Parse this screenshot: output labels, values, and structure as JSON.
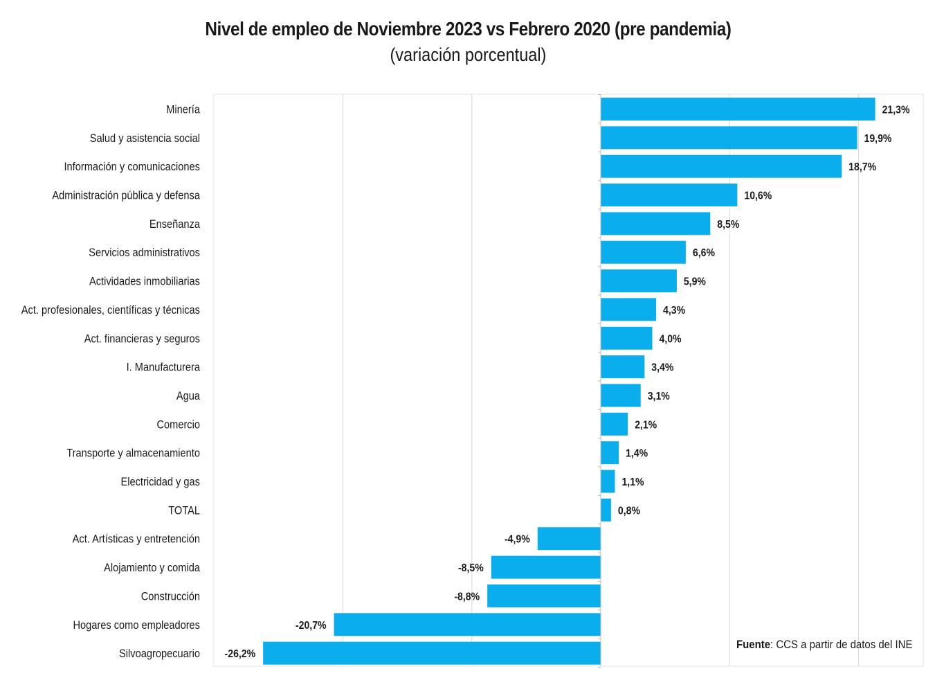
{
  "chart_data": {
    "type": "bar",
    "orientation": "horizontal",
    "title": "Nivel de empleo de Noviembre 2023 vs Febrero 2020 (pre pandemia)",
    "subtitle": "(variación porcentual)",
    "categories": [
      "Minería",
      "Salud y asistencia social",
      "Información y comunicaciones",
      "Administración pública y defensa",
      "Enseñanza",
      "Servicios administrativos",
      "Actividades inmobiliarias",
      "Act. profesionales, científicas y técnicas",
      "Act. financieras y seguros",
      "I. Manufacturera",
      "Agua",
      "Comercio",
      "Transporte y almacenamiento",
      "Electricidad y gas",
      "TOTAL",
      "Act. Artísticas y entretención",
      "Alojamiento y comida",
      "Construcción",
      "Hogares como empleadores",
      "Silvoagropecuario"
    ],
    "values": [
      21.3,
      19.9,
      18.7,
      10.6,
      8.5,
      6.6,
      5.9,
      4.3,
      4.0,
      3.4,
      3.1,
      2.1,
      1.4,
      1.1,
      0.8,
      -4.9,
      -8.5,
      -8.8,
      -20.7,
      -26.2
    ],
    "data_labels": [
      "21,3%",
      "19,9%",
      "18,7%",
      "10,6%",
      "8,5%",
      "6,6%",
      "5,9%",
      "4,3%",
      "4,0%",
      "3,4%",
      "3,1%",
      "2,1%",
      "1,4%",
      "1,1%",
      "0,8%",
      "-4,9%",
      "-8,5%",
      "-8,8%",
      "-20,7%",
      "-26,2%"
    ],
    "xlim": [
      -30,
      25
    ],
    "gridlines_at": [
      -20,
      -10,
      0,
      10,
      20
    ],
    "grid": true,
    "bar_color": "#0aaeec"
  },
  "source": {
    "label": "Fuente",
    "text": ": CCS a partir de datos del INE"
  }
}
